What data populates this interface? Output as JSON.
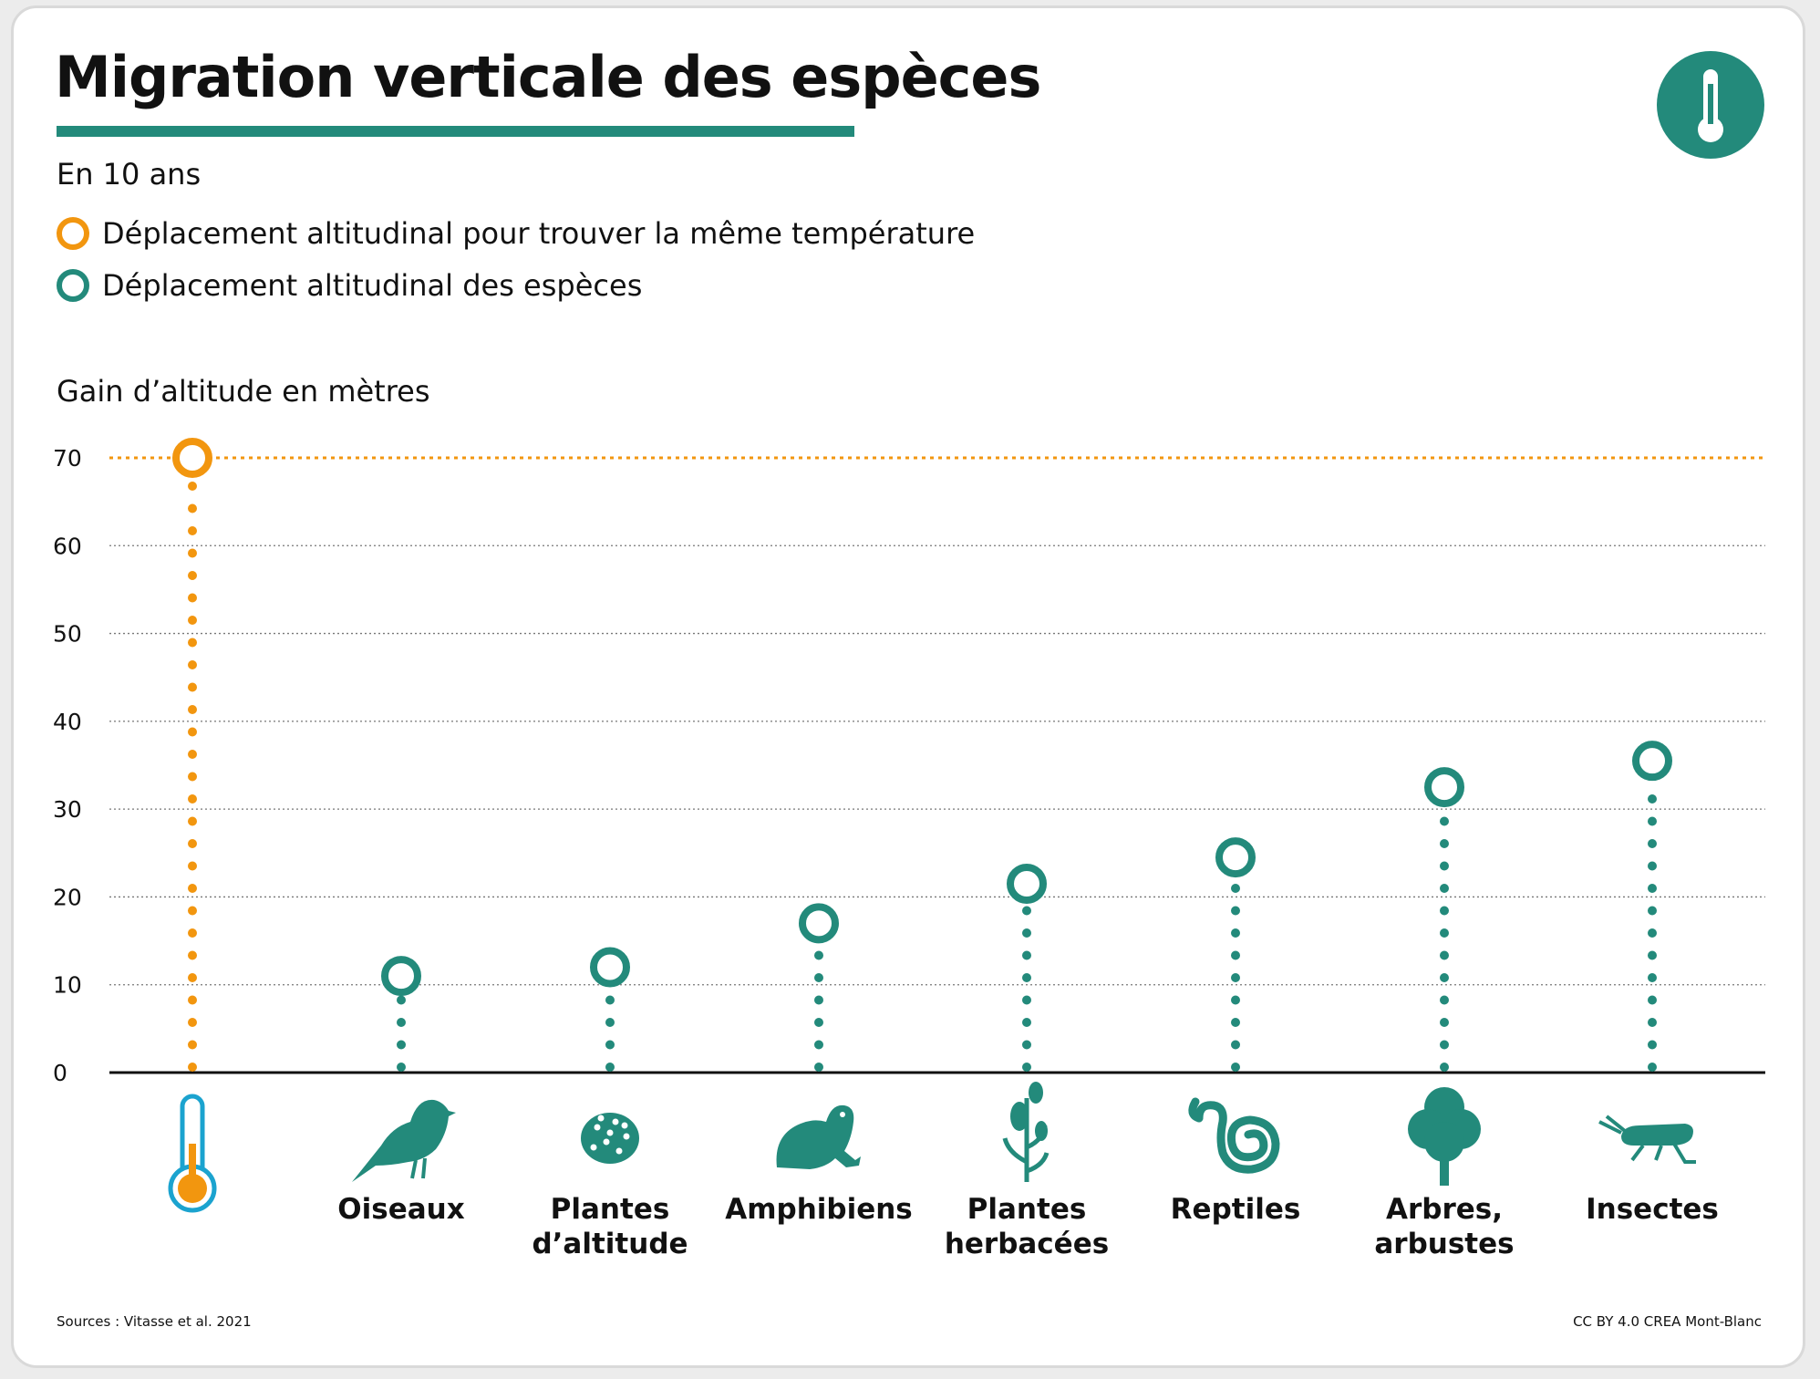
{
  "header": {
    "title": "Migration verticale des espèces",
    "subtitle": "En 10 ans"
  },
  "legend": [
    {
      "label": "Déplacement altitudinal pour trouver la même température",
      "color": "#f2960f"
    },
    {
      "label": "Déplacement altitudinal des espèces",
      "color": "#238a7b"
    }
  ],
  "badge_icon": "thermometer-icon",
  "footer": {
    "source": "Sources : Vitasse et al. 2021",
    "credit": "CC BY 4.0 CREA Mont-Blanc"
  },
  "chart_data": {
    "type": "lollipop",
    "ylabel": "Gain d’altitude en mètres",
    "ylim": [
      0,
      70
    ],
    "yticks": [
      0,
      10,
      20,
      30,
      40,
      50,
      60,
      70
    ],
    "grid": true,
    "reference": {
      "value": 70,
      "icon": "thermometer-icon",
      "color": "#f2960f"
    },
    "series_color": "#238a7b",
    "categories": [
      {
        "label_lines": [
          "Oiseaux"
        ],
        "value": 11,
        "icon": "bird-icon"
      },
      {
        "label_lines": [
          "Plantes",
          "d’altitude"
        ],
        "value": 12,
        "icon": "alpine-plant-icon"
      },
      {
        "label_lines": [
          "Amphibiens"
        ],
        "value": 17,
        "icon": "frog-icon"
      },
      {
        "label_lines": [
          "Plantes",
          "herbacées"
        ],
        "value": 21.5,
        "icon": "herb-icon"
      },
      {
        "label_lines": [
          "Reptiles"
        ],
        "value": 24.5,
        "icon": "snake-icon"
      },
      {
        "label_lines": [
          "Arbres,",
          "arbustes"
        ],
        "value": 32.5,
        "icon": "tree-icon"
      },
      {
        "label_lines": [
          "Insectes"
        ],
        "value": 35.5,
        "icon": "insect-icon"
      }
    ]
  }
}
